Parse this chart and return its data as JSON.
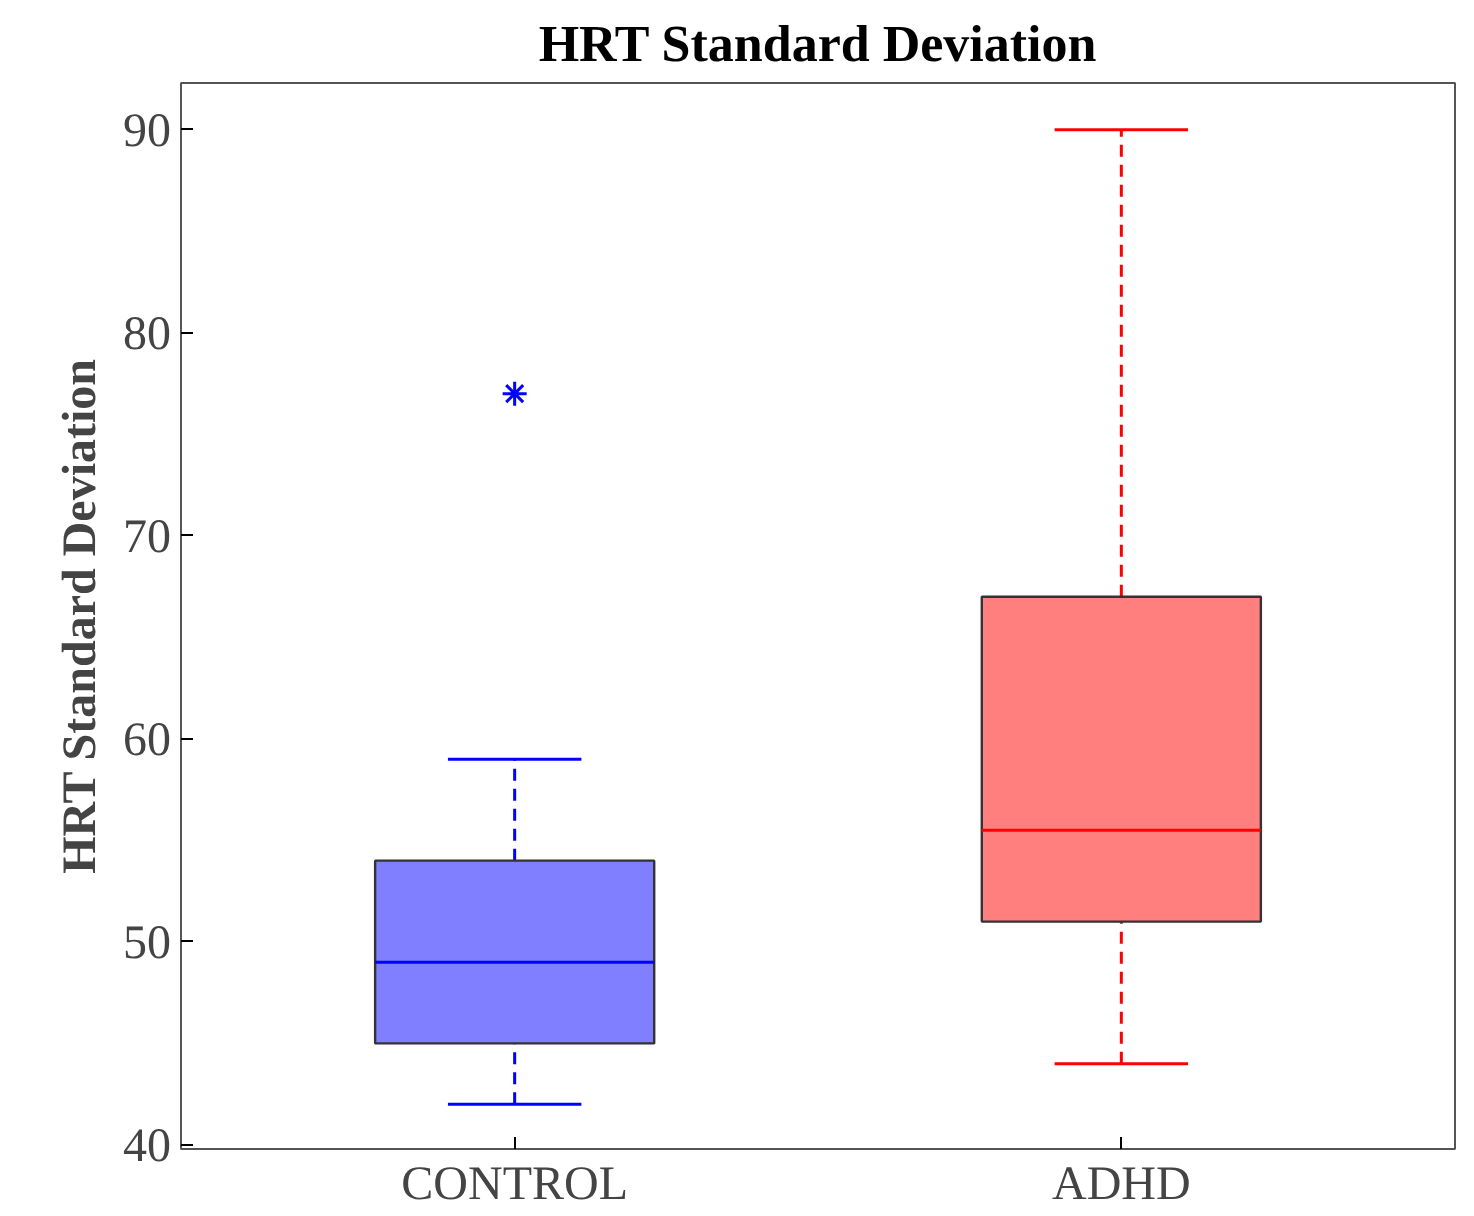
{
  "chart_data": {
    "type": "box",
    "title": "HRT Standard Deviation",
    "ylabel": "HRT Standard Deviation",
    "categories": [
      "CONTROL",
      "ADHD"
    ],
    "series": [
      {
        "colors": [
          "#0000ff",
          "#ff0000"
        ],
        "boxes": [
          {
            "low": 42,
            "q1": 45,
            "median": 49,
            "q3": 54,
            "high": 59,
            "outliers": [
              77
            ]
          },
          {
            "low": 44,
            "q1": 51,
            "median": 55.5,
            "q3": 67,
            "high": 90
          }
        ]
      }
    ],
    "ylim": [
      39.8,
      92.3
    ],
    "yticks": [
      40,
      50,
      60,
      70,
      80,
      90
    ],
    "grid": false,
    "marker": "star",
    "line_style": "dashed"
  }
}
